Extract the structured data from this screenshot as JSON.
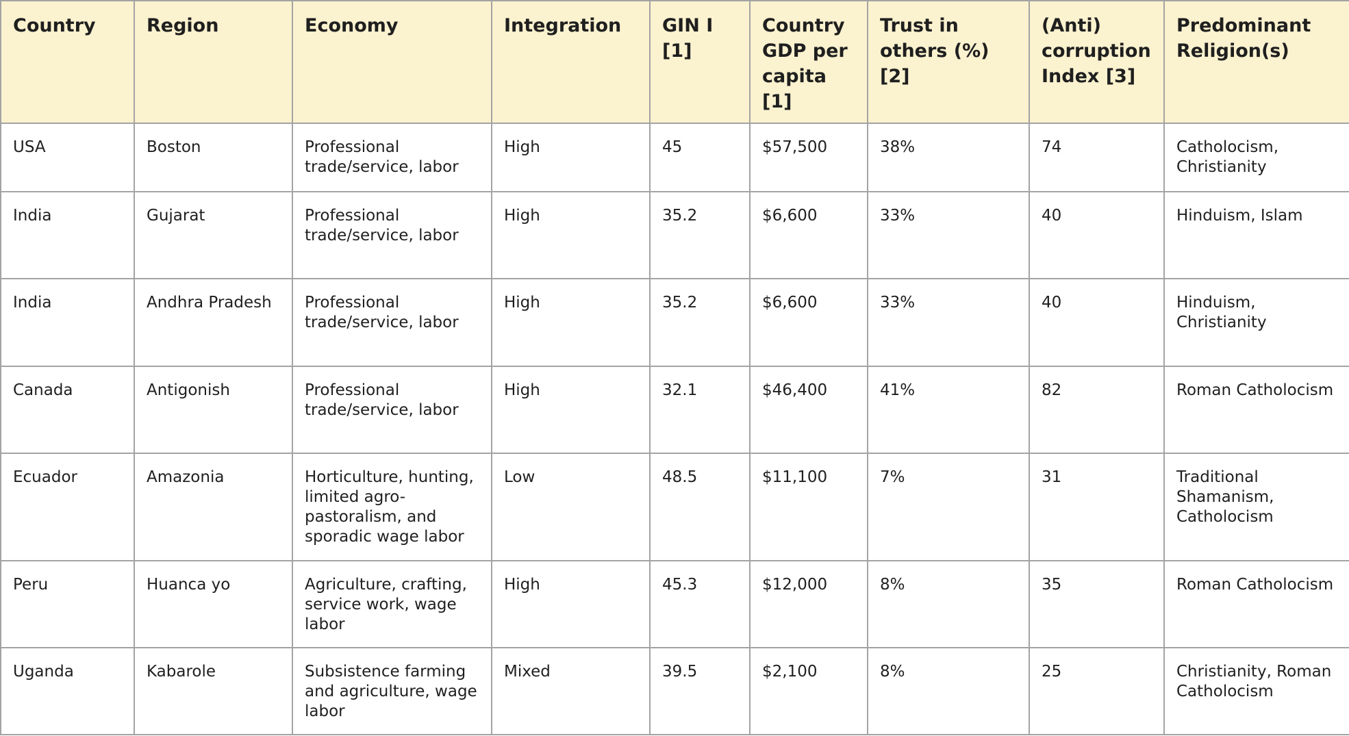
{
  "table": {
    "headers": [
      "Country",
      "Region",
      "Economy",
      "Integration",
      "GIN I [1]",
      "Country GDP per capita [1]",
      "Trust in others (%)[2]",
      "(Anti) corruption Index [3]",
      "Predominant Religion(s)"
    ],
    "rows": [
      [
        "USA",
        "Boston",
        "Professional trade/service, labor",
        "High",
        "45",
        "$57,500",
        "38%",
        "74",
        "Catholocism, Christianity"
      ],
      [
        "India",
        "Gujarat",
        "Professional trade/service, labor",
        "High",
        "35.2",
        "$6,600",
        "33%",
        "40",
        "Hinduism, Islam"
      ],
      [
        "India",
        "Andhra Pradesh",
        "Professional trade/service, labor",
        "High",
        "35.2",
        "$6,600",
        "33%",
        "40",
        "Hinduism, Christianity"
      ],
      [
        "Canada",
        "Antigonish",
        "Professional trade/service, labor",
        "High",
        "32.1",
        "$46,400",
        "41%",
        "82",
        "Roman Catholocism"
      ],
      [
        "Ecuador",
        "Amazonia",
        "Horticulture, hunting, limited agro-pastoralism, and sporadic wage labor",
        "Low",
        "48.5",
        "$11,100",
        "7%",
        "31",
        "Traditional Shamanism, Catholocism"
      ],
      [
        "Peru",
        "Huanca yo",
        "Agriculture, crafting, service work, wage labor",
        "High",
        "45.3",
        "$12,000",
        "8%",
        "35",
        "Roman Catholocism"
      ],
      [
        "Uganda",
        "Kabarole",
        "Subsistence farming and agriculture, wage labor",
        "Mixed",
        "39.5",
        "$2,100",
        "8%",
        "25",
        "Christianity, Roman Catholocism"
      ]
    ]
  }
}
